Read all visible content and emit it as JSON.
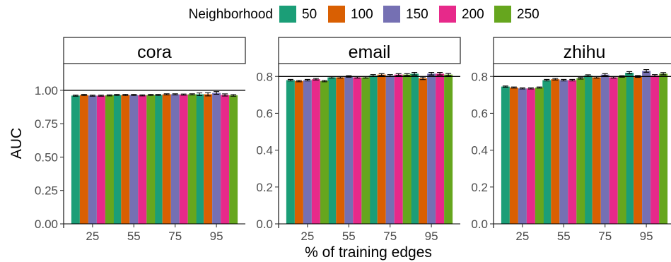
{
  "legend": {
    "title": "Neighborhood",
    "position": "top",
    "items": [
      {
        "label": "50",
        "color": "#1b9e77"
      },
      {
        "label": "100",
        "color": "#d95f02"
      },
      {
        "label": "150",
        "color": "#7570b3"
      },
      {
        "label": "200",
        "color": "#e7298a"
      },
      {
        "label": "250",
        "color": "#66a61e"
      }
    ]
  },
  "chart_data": [
    {
      "type": "bar",
      "title": "cora",
      "xlabel": "% of training edges",
      "ylabel": "AUC",
      "categories": [
        "25",
        "55",
        "75",
        "95"
      ],
      "ylim": [
        0,
        1.2
      ],
      "yticks": [
        "0.00",
        "0.25",
        "0.50",
        "0.75",
        "1.00"
      ],
      "ytick_values": [
        0,
        0.25,
        0.5,
        0.75,
        1.0
      ],
      "reference_line": 1.0,
      "series": [
        {
          "name": "50",
          "values": [
            0.96,
            0.965,
            0.965,
            0.97
          ],
          "errors": [
            0.004,
            0.004,
            0.004,
            0.01
          ]
        },
        {
          "name": "100",
          "values": [
            0.965,
            0.965,
            0.97,
            0.97
          ],
          "errors": [
            0.004,
            0.004,
            0.004,
            0.012
          ]
        },
        {
          "name": "150",
          "values": [
            0.96,
            0.965,
            0.97,
            0.98
          ],
          "errors": [
            0.004,
            0.004,
            0.004,
            0.01
          ]
        },
        {
          "name": "200",
          "values": [
            0.96,
            0.962,
            0.968,
            0.965
          ],
          "errors": [
            0.004,
            0.004,
            0.004,
            0.008
          ]
        },
        {
          "name": "250",
          "values": [
            0.962,
            0.965,
            0.97,
            0.962
          ],
          "errors": [
            0.004,
            0.004,
            0.004,
            0.006
          ]
        }
      ]
    },
    {
      "type": "bar",
      "title": "email",
      "xlabel": "% of training edges",
      "ylabel": "AUC",
      "categories": [
        "25",
        "55",
        "75",
        "95"
      ],
      "ylim": [
        0,
        0.87
      ],
      "yticks": [
        "0.0",
        "0.2",
        "0.4",
        "0.6",
        "0.8"
      ],
      "ytick_values": [
        0,
        0.2,
        0.4,
        0.6,
        0.8
      ],
      "reference_line": 0.8,
      "series": [
        {
          "name": "50",
          "values": [
            0.78,
            0.795,
            0.805,
            0.815
          ],
          "errors": [
            0.004,
            0.004,
            0.005,
            0.007
          ]
        },
        {
          "name": "100",
          "values": [
            0.775,
            0.795,
            0.81,
            0.79
          ],
          "errors": [
            0.004,
            0.004,
            0.005,
            0.007
          ]
        },
        {
          "name": "150",
          "values": [
            0.78,
            0.8,
            0.805,
            0.815
          ],
          "errors": [
            0.004,
            0.004,
            0.005,
            0.007
          ]
        },
        {
          "name": "200",
          "values": [
            0.785,
            0.795,
            0.81,
            0.815
          ],
          "errors": [
            0.004,
            0.004,
            0.005,
            0.007
          ]
        },
        {
          "name": "250",
          "values": [
            0.775,
            0.795,
            0.81,
            0.81
          ],
          "errors": [
            0.004,
            0.004,
            0.005,
            0.006
          ]
        }
      ]
    },
    {
      "type": "bar",
      "title": "zhihu",
      "xlabel": "% of training edges",
      "ylabel": "AUC",
      "categories": [
        "25",
        "55",
        "75",
        "95"
      ],
      "ylim": [
        0,
        0.87
      ],
      "yticks": [
        "0.0",
        "0.2",
        "0.4",
        "0.6",
        "0.8"
      ],
      "ytick_values": [
        0,
        0.2,
        0.4,
        0.6,
        0.8
      ],
      "reference_line": 0.8,
      "series": [
        {
          "name": "50",
          "values": [
            0.745,
            0.78,
            0.805,
            0.82
          ],
          "errors": [
            0.003,
            0.004,
            0.004,
            0.006
          ]
        },
        {
          "name": "100",
          "values": [
            0.74,
            0.785,
            0.795,
            0.8
          ],
          "errors": [
            0.003,
            0.004,
            0.004,
            0.005
          ]
        },
        {
          "name": "150",
          "values": [
            0.735,
            0.78,
            0.81,
            0.83
          ],
          "errors": [
            0.003,
            0.004,
            0.005,
            0.007
          ]
        },
        {
          "name": "200",
          "values": [
            0.735,
            0.78,
            0.795,
            0.805
          ],
          "errors": [
            0.003,
            0.004,
            0.004,
            0.005
          ]
        },
        {
          "name": "250",
          "values": [
            0.74,
            0.79,
            0.8,
            0.815
          ],
          "errors": [
            0.003,
            0.004,
            0.004,
            0.006
          ]
        }
      ]
    }
  ]
}
